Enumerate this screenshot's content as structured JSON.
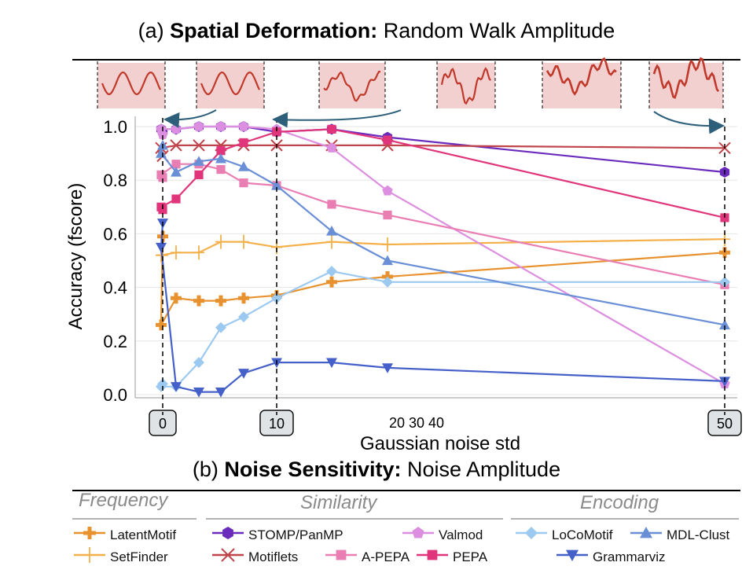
{
  "top_title": {
    "prefix": "(a) ",
    "bold": "Spatial Deformation:",
    "rest": " Random Walk Amplitude"
  },
  "bottom_title": {
    "prefix": "(b) ",
    "bold": "Noise Sensitivity:",
    "rest": " Noise Amplitude"
  },
  "legend": {
    "groups": [
      {
        "name": "Frequency"
      },
      {
        "name": "Similarity"
      },
      {
        "name": "Encoding"
      }
    ],
    "entries": [
      {
        "label": "LatentMotif",
        "color": "#e8922f",
        "marker": "plus-thick"
      },
      {
        "label": "SetFinder",
        "color": "#f4b04a",
        "marker": "plus-thin"
      },
      {
        "label": "STOMP/PanMP",
        "color": "#6a2bbd",
        "marker": "hexagon"
      },
      {
        "label": "Motiflets",
        "color": "#c0444b",
        "marker": "x"
      },
      {
        "label": "Valmod",
        "color": "#dc8fe0",
        "marker": "pentagon"
      },
      {
        "label": "A-PEPA",
        "color": "#e97eb3",
        "marker": "square"
      },
      {
        "label": "PEPA",
        "color": "#e0357a",
        "marker": "square"
      },
      {
        "label": "LoCoMotif",
        "color": "#9cc9f0",
        "marker": "diamond"
      },
      {
        "label": "MDL-Clust",
        "color": "#6a8fd6",
        "marker": "triangle-up"
      },
      {
        "label": "Grammarviz",
        "color": "#4560c8",
        "marker": "triangle-down"
      }
    ]
  },
  "chart_data": {
    "type": "line",
    "xlabel": "Gaussian noise std",
    "ylabel": "Accuracy (fscore)",
    "ylim": [
      0.0,
      1.0
    ],
    "yticks": [
      "0.0",
      "0.2",
      "0.4",
      "0.6",
      "0.8",
      "1.0"
    ],
    "xticks_boxed": [
      "0",
      "10",
      "50"
    ],
    "xticks_plain": [
      "20 30 40"
    ],
    "x": [
      0,
      0.3,
      1,
      2.5,
      4,
      6,
      10,
      13,
      20,
      50
    ],
    "series": [
      {
        "name": "LatentMotif",
        "color": "#e8922f",
        "marker": "plus-thick",
        "values": [
          0.59,
          0.26,
          0.36,
          0.35,
          0.35,
          0.36,
          0.37,
          0.42,
          0.44,
          0.53
        ]
      },
      {
        "name": "SetFinder",
        "color": "#f4b04a",
        "marker": "plus-thin",
        "values": [
          0.52,
          0.52,
          0.53,
          0.53,
          0.57,
          0.57,
          0.55,
          0.57,
          0.56,
          0.58
        ]
      },
      {
        "name": "STOMP/PanMP",
        "color": "#6a2bbd",
        "marker": "hexagon",
        "values": [
          0.98,
          0.99,
          0.99,
          1.0,
          1.0,
          1.0,
          0.98,
          0.99,
          0.96,
          0.83
        ]
      },
      {
        "name": "Motiflets",
        "color": "#c0444b",
        "marker": "x",
        "values": [
          0.89,
          0.92,
          0.93,
          0.93,
          0.93,
          0.93,
          0.93,
          0.93,
          0.93,
          0.92
        ]
      },
      {
        "name": "Valmod",
        "color": "#dc8fe0",
        "marker": "pentagon",
        "values": [
          0.97,
          0.99,
          0.99,
          1.0,
          1.0,
          1.0,
          0.99,
          0.92,
          0.76,
          0.04
        ]
      },
      {
        "name": "A-PEPA",
        "color": "#e97eb3",
        "marker": "square",
        "values": [
          0.81,
          0.82,
          0.86,
          0.86,
          0.84,
          0.79,
          0.78,
          0.71,
          0.67,
          0.41
        ]
      },
      {
        "name": "PEPA",
        "color": "#e0357a",
        "marker": "square",
        "values": [
          0.69,
          0.7,
          0.73,
          0.82,
          0.91,
          0.94,
          0.98,
          0.99,
          0.95,
          0.66
        ]
      },
      {
        "name": "LoCoMotif",
        "color": "#9cc9f0",
        "marker": "diamond",
        "values": [
          0.04,
          0.03,
          0.03,
          0.12,
          0.25,
          0.29,
          0.36,
          0.46,
          0.42,
          0.42
        ]
      },
      {
        "name": "MDL-Clust",
        "color": "#6a8fd6",
        "marker": "triangle-up",
        "values": [
          0.93,
          0.9,
          0.83,
          0.87,
          0.88,
          0.85,
          0.78,
          0.61,
          0.5,
          0.26
        ]
      },
      {
        "name": "Grammarviz",
        "color": "#4560c8",
        "marker": "triangle-down",
        "values": [
          0.64,
          0.55,
          0.03,
          0.01,
          0.01,
          0.08,
          0.12,
          0.12,
          0.1,
          0.05
        ]
      }
    ]
  }
}
